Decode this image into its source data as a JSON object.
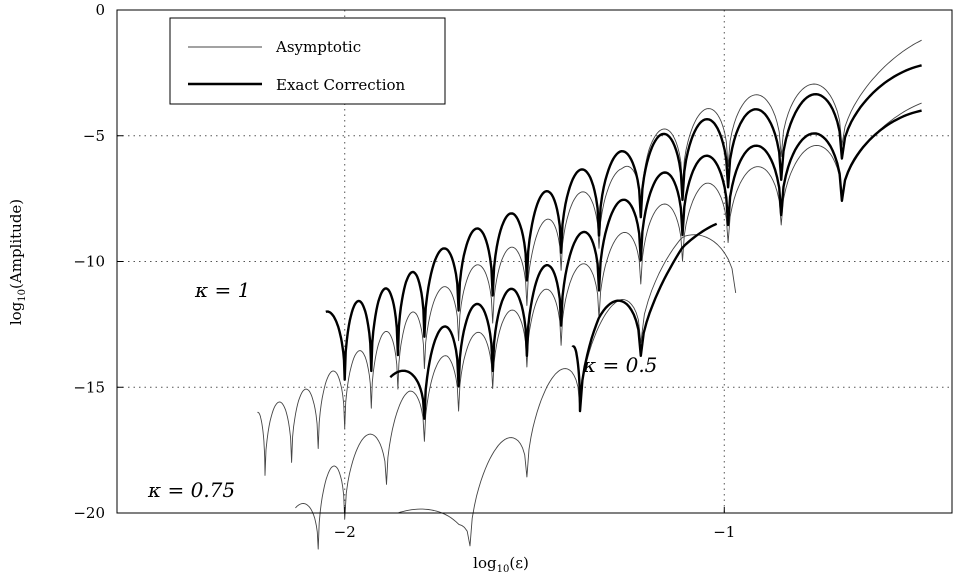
{
  "chart_data": {
    "type": "line",
    "xlabel": "log10(ε)",
    "ylabel": "log10(Amplitude)",
    "xlim": [
      -2.6,
      -0.4
    ],
    "ylim": [
      -20,
      0
    ],
    "x_ticks": [
      -2,
      -1
    ],
    "x_tick_labels": [
      "−2",
      "−1"
    ],
    "y_ticks": [
      0,
      -5,
      -10,
      -15,
      -20
    ],
    "y_tick_labels": [
      "0",
      "−5",
      "−10",
      "−15",
      "−20"
    ],
    "grid": "dotted",
    "legend": {
      "position": "top-left",
      "entries": [
        {
          "label": "Asymptotic",
          "style": "thin"
        },
        {
          "label": "Exact Correction",
          "style": "thick"
        }
      ]
    },
    "series": [
      {
        "name": "Asymptotic",
        "kappa": "1",
        "style": "thin",
        "x_range": [
          -2.23,
          -0.48
        ],
        "points": [
          [
            -2.23,
            -16.0
          ],
          [
            -2.08,
            -14.9
          ],
          [
            -1.95,
            -13.4
          ],
          [
            -1.83,
            -12.1
          ],
          [
            -1.7,
            -10.5
          ],
          [
            -1.52,
            -9.1
          ],
          [
            -1.43,
            -7.7
          ],
          [
            -1.27,
            -6.3
          ],
          [
            -1.2,
            -5.0
          ],
          [
            -1.0,
            -3.6
          ],
          [
            -0.68,
            -2.7
          ],
          [
            -0.48,
            -1.2
          ]
        ],
        "dips": [
          -2.21,
          -2.14,
          -2.07,
          -2.0,
          -1.93,
          -1.86,
          -1.79,
          -1.7,
          -1.61,
          -1.52,
          -1.43,
          -1.33,
          -1.22,
          -1.11,
          -0.99,
          -0.85,
          -0.69
        ]
      },
      {
        "name": "Exact Correction",
        "kappa": "1",
        "style": "thick",
        "x_range": [
          -2.05,
          -0.48
        ],
        "points": [
          [
            -2.05,
            -12.0
          ],
          [
            -1.93,
            -11.4
          ],
          [
            -1.83,
            -10.5
          ],
          [
            -1.7,
            -9.0
          ],
          [
            -1.52,
            -7.8
          ],
          [
            -1.43,
            -6.7
          ],
          [
            -1.27,
            -5.6
          ],
          [
            -1.11,
            -4.6
          ],
          [
            -0.99,
            -4.1
          ],
          [
            -0.85,
            -3.8
          ],
          [
            -0.68,
            -2.9
          ],
          [
            -0.48,
            -2.2
          ]
        ],
        "dips": [
          -2.0,
          -1.93,
          -1.86,
          -1.79,
          -1.7,
          -1.61,
          -1.52,
          -1.43,
          -1.33,
          -1.22,
          -1.11,
          -0.99,
          -0.85,
          -0.69
        ]
      },
      {
        "name": "Asymptotic",
        "kappa": "0.75",
        "style": "thin",
        "x_range": [
          -2.13,
          -0.48
        ],
        "points": [
          [
            -2.13,
            -19.8
          ],
          [
            -2.0,
            -17.6
          ],
          [
            -1.9,
            -16.4
          ],
          [
            -1.83,
            -15.1
          ],
          [
            -1.73,
            -13.6
          ],
          [
            -1.58,
            -12.1
          ],
          [
            -1.45,
            -10.9
          ],
          [
            -1.33,
            -9.6
          ],
          [
            -1.2,
            -8.0
          ],
          [
            -1.05,
            -6.9
          ],
          [
            -0.85,
            -5.9
          ],
          [
            -0.48,
            -3.7
          ]
        ],
        "dips": [
          -2.07,
          -2.0,
          -1.89,
          -1.79,
          -1.7,
          -1.61,
          -1.52,
          -1.43,
          -1.33,
          -1.22,
          -1.11,
          -0.99,
          -0.85,
          -0.69
        ]
      },
      {
        "name": "Exact Correction",
        "kappa": "0.75",
        "style": "thick",
        "x_range": [
          -1.88,
          -0.48
        ],
        "points": [
          [
            -1.88,
            -14.6
          ],
          [
            -1.79,
            -13.3
          ],
          [
            -1.7,
            -12.0
          ],
          [
            -1.52,
            -10.8
          ],
          [
            -1.43,
            -9.6
          ],
          [
            -1.33,
            -8.2
          ],
          [
            -1.22,
            -7.0
          ],
          [
            -1.11,
            -6.0
          ],
          [
            -0.99,
            -5.6
          ],
          [
            -0.85,
            -5.2
          ],
          [
            -0.68,
            -4.6
          ],
          [
            -0.48,
            -4.0
          ]
        ],
        "dips": [
          -1.79,
          -1.7,
          -1.61,
          -1.52,
          -1.43,
          -1.33,
          -1.22,
          -1.11,
          -0.99,
          -0.85,
          -0.69
        ]
      },
      {
        "name": "Asymptotic",
        "kappa": "0.5",
        "style": "thin",
        "x_range": [
          -1.86,
          -0.97
        ],
        "points": [
          [
            -1.86,
            -20.0
          ],
          [
            -1.7,
            -19.2
          ],
          [
            -1.55,
            -16.5
          ],
          [
            -1.4,
            -13.6
          ],
          [
            -1.27,
            -11.3
          ],
          [
            -1.11,
            -9.0
          ],
          [
            -0.97,
            -8.6
          ]
        ],
        "dips": [
          -1.67,
          -1.52,
          -1.38,
          -1.22,
          -0.97
        ]
      },
      {
        "name": "Exact Correction",
        "kappa": "0.5",
        "style": "thick",
        "x_range": [
          -1.4,
          -1.02
        ],
        "points": [
          [
            -1.4,
            -13.4
          ],
          [
            -1.33,
            -12.0
          ],
          [
            -1.22,
            -10.8
          ],
          [
            -1.11,
            -9.1
          ],
          [
            -1.02,
            -8.5
          ]
        ],
        "dips": [
          -1.38,
          -1.22,
          -1.0
        ]
      }
    ],
    "annotations": [
      "κ = 1",
      "κ = 0.75",
      "κ = 0.5"
    ]
  }
}
